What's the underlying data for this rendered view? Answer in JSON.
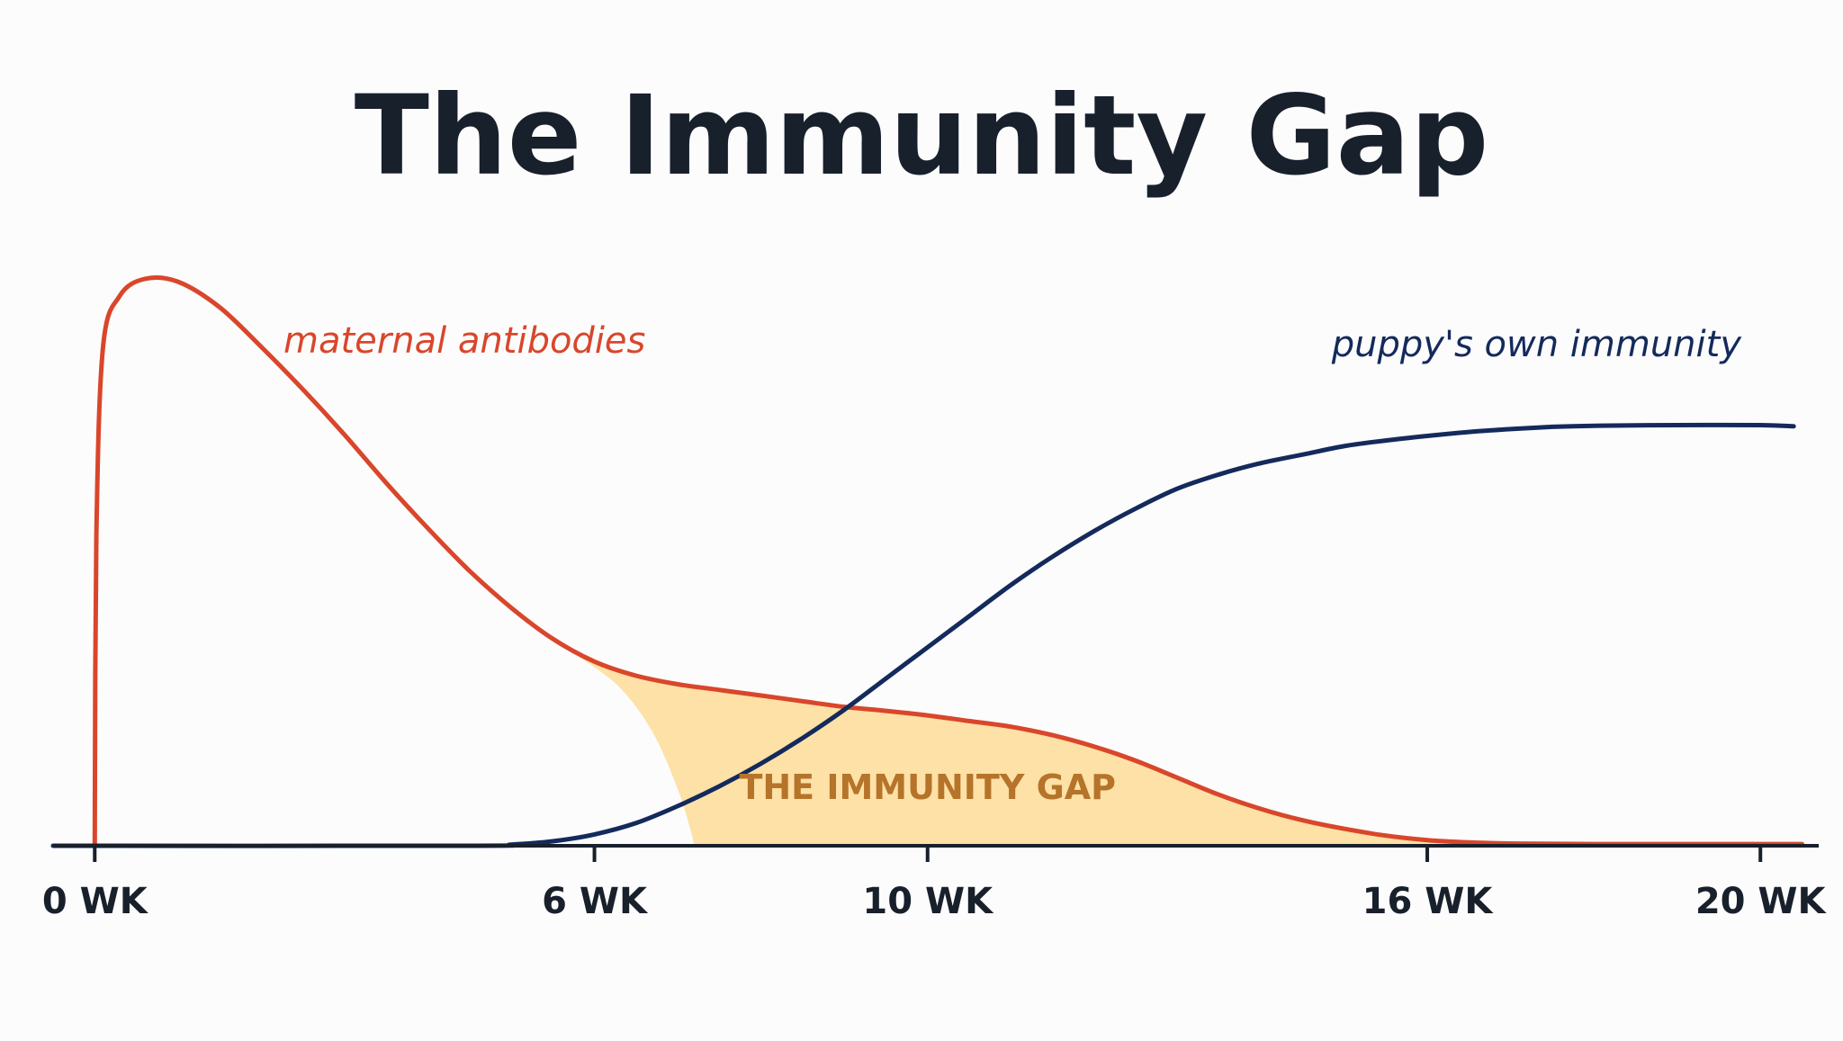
{
  "chart_data": {
    "type": "line",
    "title": "The Immunity Gap",
    "xlabel": "",
    "ylabel": "",
    "x_unit": "WK",
    "xlim": [
      -0.5,
      20.7
    ],
    "ylim": [
      0,
      100
    ],
    "grid": false,
    "legend": "none",
    "x_ticks": [
      {
        "value": 0,
        "label": "0 WK"
      },
      {
        "value": 6,
        "label": "6 WK"
      },
      {
        "value": 10,
        "label": "10 WK"
      },
      {
        "value": 16,
        "label": "16 WK"
      },
      {
        "value": 20,
        "label": "20 WK"
      }
    ],
    "series": [
      {
        "name": "maternal antibodies",
        "color": "#d9462b",
        "points": [
          [
            0,
            0
          ],
          [
            0.02,
            55
          ],
          [
            0.1,
            88
          ],
          [
            0.3,
            97
          ],
          [
            0.6,
            100
          ],
          [
            1.0,
            99.5
          ],
          [
            1.5,
            95
          ],
          [
            2.0,
            88
          ],
          [
            2.5,
            80.5
          ],
          [
            3.0,
            72.5
          ],
          [
            3.5,
            64
          ],
          [
            4.0,
            56
          ],
          [
            4.5,
            48.5
          ],
          [
            5.0,
            42
          ],
          [
            5.5,
            36.5
          ],
          [
            6.0,
            32.5
          ],
          [
            6.5,
            30
          ],
          [
            7.0,
            28.5
          ],
          [
            7.5,
            27.5
          ],
          [
            8.0,
            26.5
          ],
          [
            8.5,
            25.5
          ],
          [
            9.0,
            24.5
          ],
          [
            9.5,
            23.8
          ],
          [
            10.0,
            23
          ],
          [
            10.5,
            22
          ],
          [
            11.0,
            21
          ],
          [
            11.5,
            19.5
          ],
          [
            12.0,
            17.5
          ],
          [
            12.5,
            15
          ],
          [
            13.0,
            12
          ],
          [
            13.5,
            9
          ],
          [
            14.0,
            6.5
          ],
          [
            14.5,
            4.5
          ],
          [
            15.0,
            3
          ],
          [
            15.5,
            1.8
          ],
          [
            16.0,
            1
          ],
          [
            16.5,
            0.6
          ],
          [
            17.0,
            0.4
          ],
          [
            18.0,
            0.3
          ],
          [
            20.5,
            0.3
          ]
        ]
      },
      {
        "name": "puppy's own immunity",
        "color": "#142a5c",
        "points": [
          [
            -0.5,
            0
          ],
          [
            4.5,
            0
          ],
          [
            5.0,
            0.2
          ],
          [
            5.5,
            0.8
          ],
          [
            6.0,
            2
          ],
          [
            6.5,
            4
          ],
          [
            7.0,
            7
          ],
          [
            7.5,
            10.5
          ],
          [
            8.0,
            14.5
          ],
          [
            8.5,
            19
          ],
          [
            9.0,
            24
          ],
          [
            9.5,
            29.5
          ],
          [
            10.0,
            35
          ],
          [
            10.5,
            40.5
          ],
          [
            11.0,
            46
          ],
          [
            11.5,
            51
          ],
          [
            12.0,
            55.5
          ],
          [
            12.5,
            59.5
          ],
          [
            13.0,
            63
          ],
          [
            13.5,
            65.5
          ],
          [
            14.0,
            67.5
          ],
          [
            14.5,
            69
          ],
          [
            15.0,
            70.5
          ],
          [
            15.5,
            71.5
          ],
          [
            16.0,
            72.3
          ],
          [
            16.5,
            73
          ],
          [
            17.0,
            73.5
          ],
          [
            17.5,
            73.9
          ],
          [
            18.0,
            74.1
          ],
          [
            19.0,
            74.2
          ],
          [
            20.0,
            74.2
          ],
          [
            20.4,
            74
          ]
        ]
      }
    ],
    "annotations": [
      {
        "text": "THE IMMUNITY GAP",
        "x": 10.0,
        "y": 10.5,
        "color": "#b5742a"
      }
    ],
    "shaded_region": {
      "label": "THE IMMUNITY GAP",
      "color": "#fde1a6",
      "between": "maternal antibodies",
      "left_boundary": [
        [
          5.8,
          33.5
        ],
        [
          6.3,
          28
        ],
        [
          6.7,
          20
        ],
        [
          7.0,
          10
        ],
        [
          7.15,
          3
        ],
        [
          7.2,
          0
        ]
      ],
      "x_end": 20.5
    }
  }
}
